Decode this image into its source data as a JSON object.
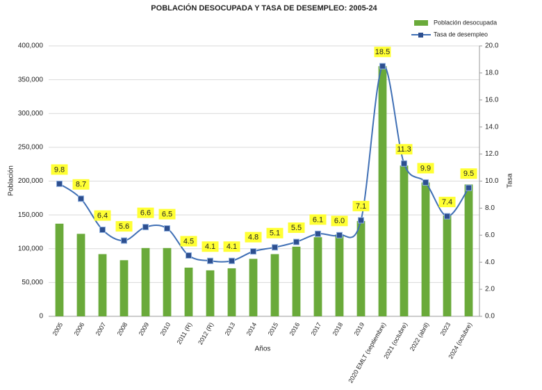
{
  "chart_data": {
    "type": "bar-line",
    "title": "POBLACIÓN DESOCUPADA Y TASA DE DESEMPLEO: 2005-24",
    "x_label": "Años",
    "y_label": "Población",
    "y2_label": "Tasa",
    "categories": [
      "2005",
      "2006",
      "2007",
      "2008",
      "2009",
      "2010",
      "2011 (R)",
      "2012 (R)",
      "2013",
      "2014",
      "2015",
      "2016",
      "2017",
      "2018",
      "2019",
      "2020 EMLT (septiembre)",
      "2021 (octubre)",
      "2022 (abril)",
      "2023",
      "2024 (octubre)"
    ],
    "series": [
      {
        "name": "Población desocupada",
        "type": "bar",
        "color": "#6aaa3a",
        "values": [
          137000,
          122000,
          92000,
          83000,
          101000,
          101000,
          72000,
          68000,
          71000,
          85000,
          92000,
          103000,
          117000,
          121000,
          141000,
          370000,
          223000,
          198000,
          149000,
          195000
        ]
      },
      {
        "name": "Tasa de desempleo",
        "type": "line",
        "axis": "y2",
        "color": "#3f6fb5",
        "values": [
          9.8,
          8.7,
          6.4,
          5.6,
          6.6,
          6.5,
          4.5,
          4.1,
          4.1,
          4.8,
          5.1,
          5.5,
          6.1,
          6.0,
          7.1,
          18.5,
          11.3,
          9.9,
          7.4,
          9.5
        ],
        "value_labels": [
          "9.8",
          "8.7",
          "6.4",
          "5.6",
          "6.6",
          "6.5",
          "4.5",
          "4.1",
          "4.1",
          "4.8",
          "5.1",
          "5.5",
          "6.1",
          "6.0",
          "7.1",
          "18.5",
          "11.3",
          "9.9",
          "7.4",
          "9.5"
        ]
      }
    ],
    "ylim": [
      0,
      400000
    ],
    "yticks": [
      0,
      {
        "value": 50000,
        "label": "50,000"
      },
      {
        "value": 100000,
        "label": "100,000"
      },
      {
        "value": 150000,
        "label": "150,000"
      },
      {
        "value": 200000,
        "label": "200,000"
      },
      {
        "value": 250000,
        "label": "250,000"
      },
      {
        "value": 300000,
        "label": "300,000"
      },
      {
        "value": 350000,
        "label": "350,000"
      },
      {
        "value": 400000,
        "label": "400,000"
      }
    ],
    "y2lim": [
      0,
      20
    ],
    "y2ticks": [
      {
        "value": 0,
        "label": "0.0"
      },
      {
        "value": 2,
        "label": "2.0"
      },
      {
        "value": 4,
        "label": "4.0"
      },
      {
        "value": 6,
        "label": "6.0"
      },
      {
        "value": 8,
        "label": "8.0"
      },
      {
        "value": 10,
        "label": "10.0"
      },
      {
        "value": 12,
        "label": "12.0"
      },
      {
        "value": 14,
        "label": "14.0"
      },
      {
        "value": 16,
        "label": "16.0"
      },
      {
        "value": 18,
        "label": "18.0"
      },
      {
        "value": 20,
        "label": "20.0"
      }
    ],
    "grid": true
  }
}
